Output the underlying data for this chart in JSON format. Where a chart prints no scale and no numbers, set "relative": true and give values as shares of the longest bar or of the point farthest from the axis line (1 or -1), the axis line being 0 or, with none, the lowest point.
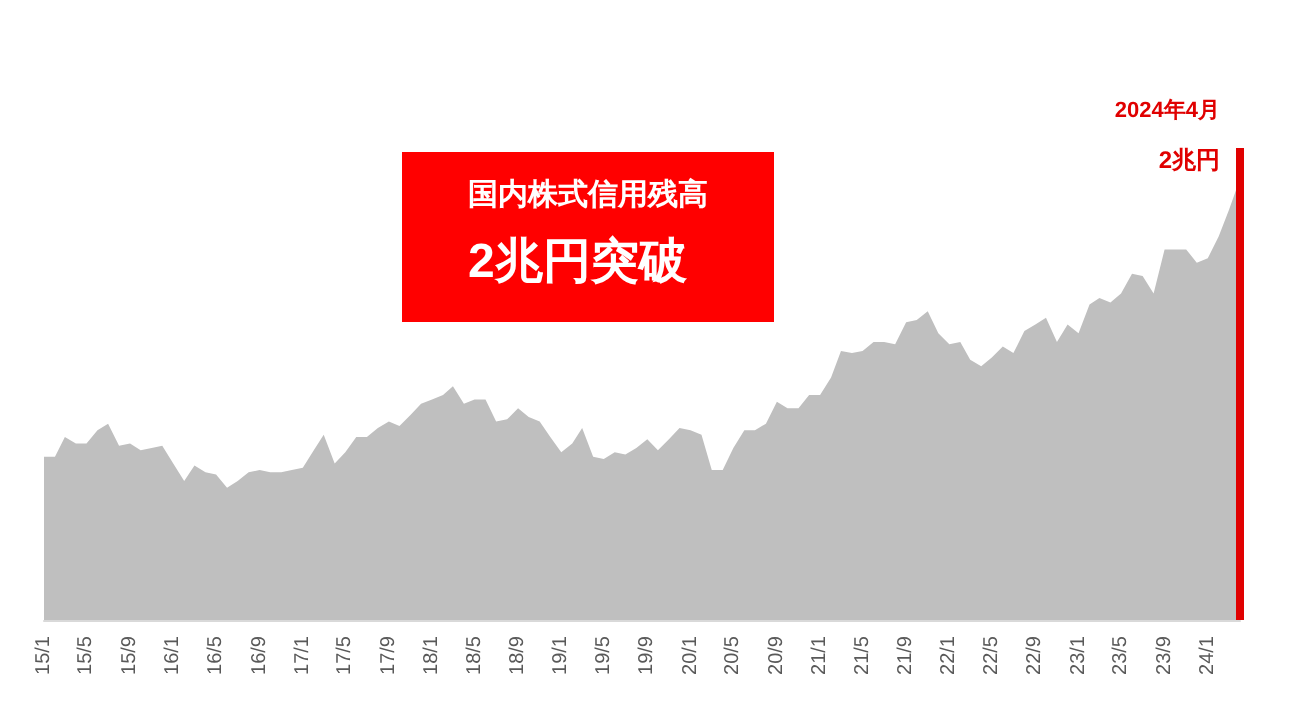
{
  "chart_data": {
    "type": "area",
    "title": "国内株式信用残高",
    "subtitle": "2兆円突破",
    "relative": true,
    "color": "#bfbfbf",
    "grid": false,
    "x": [
      "2015-01",
      "2015-02",
      "2015-03",
      "2015-04",
      "2015-05",
      "2015-06",
      "2015-07",
      "2015-08",
      "2015-09",
      "2015-10",
      "2015-11",
      "2015-12",
      "2016-01",
      "2016-02",
      "2016-03",
      "2016-04",
      "2016-05",
      "2016-06",
      "2016-07",
      "2016-08",
      "2016-09",
      "2016-10",
      "2016-11",
      "2016-12",
      "2017-01",
      "2017-02",
      "2017-03",
      "2017-04",
      "2017-05",
      "2017-06",
      "2017-07",
      "2017-08",
      "2017-09",
      "2017-10",
      "2017-11",
      "2017-12",
      "2018-01",
      "2018-02",
      "2018-03",
      "2018-04",
      "2018-05",
      "2018-06",
      "2018-07",
      "2018-08",
      "2018-09",
      "2018-10",
      "2018-11",
      "2018-12",
      "2019-01",
      "2019-02",
      "2019-03",
      "2019-04",
      "2019-05",
      "2019-06",
      "2019-07",
      "2019-08",
      "2019-09",
      "2019-10",
      "2019-11",
      "2019-12",
      "2020-01",
      "2020-02",
      "2020-03",
      "2020-04",
      "2020-05",
      "2020-06",
      "2020-07",
      "2020-08",
      "2020-09",
      "2020-10",
      "2020-11",
      "2020-12",
      "2021-01",
      "2021-02",
      "2021-03",
      "2021-04",
      "2021-05",
      "2021-06",
      "2021-07",
      "2021-08",
      "2021-09",
      "2021-10",
      "2021-11",
      "2021-12",
      "2022-01",
      "2022-02",
      "2022-03",
      "2022-04",
      "2022-05",
      "2022-06",
      "2022-07",
      "2022-08",
      "2022-09",
      "2022-10",
      "2022-11",
      "2022-12",
      "2023-01",
      "2023-02",
      "2023-03",
      "2023-04",
      "2023-05",
      "2023-06",
      "2023-07",
      "2023-08",
      "2023-09",
      "2023-10",
      "2023-11",
      "2023-12",
      "2024-01",
      "2024-02",
      "2024-03",
      "2024-04"
    ],
    "xlim": [
      "2015-01",
      "2024-04"
    ],
    "xticks": [
      {
        "value": "2015-01",
        "label": "15/1"
      },
      {
        "value": "2015-05",
        "label": "15/5"
      },
      {
        "value": "2015-09",
        "label": "15/9"
      },
      {
        "value": "2016-01",
        "label": "16/1"
      },
      {
        "value": "2016-05",
        "label": "16/5"
      },
      {
        "value": "2016-09",
        "label": "16/9"
      },
      {
        "value": "2017-01",
        "label": "17/1"
      },
      {
        "value": "2017-05",
        "label": "17/5"
      },
      {
        "value": "2017-09",
        "label": "17/9"
      },
      {
        "value": "2018-01",
        "label": "18/1"
      },
      {
        "value": "2018-05",
        "label": "18/5"
      },
      {
        "value": "2018-09",
        "label": "18/9"
      },
      {
        "value": "2019-01",
        "label": "19/1"
      },
      {
        "value": "2019-05",
        "label": "19/5"
      },
      {
        "value": "2019-09",
        "label": "19/9"
      },
      {
        "value": "2020-01",
        "label": "20/1"
      },
      {
        "value": "2020-05",
        "label": "20/5"
      },
      {
        "value": "2020-09",
        "label": "20/9"
      },
      {
        "value": "2021-01",
        "label": "21/1"
      },
      {
        "value": "2021-05",
        "label": "21/5"
      },
      {
        "value": "2021-09",
        "label": "21/9"
      },
      {
        "value": "2022-01",
        "label": "22/1"
      },
      {
        "value": "2022-05",
        "label": "22/5"
      },
      {
        "value": "2022-09",
        "label": "22/9"
      },
      {
        "value": "2023-01",
        "label": "23/1"
      },
      {
        "value": "2023-05",
        "label": "23/5"
      },
      {
        "value": "2023-09",
        "label": "23/9"
      },
      {
        "value": "2024-01",
        "label": "24/1"
      }
    ],
    "values": [
      0.37,
      0.37,
      0.415,
      0.4,
      0.4,
      0.43,
      0.445,
      0.395,
      0.4,
      0.385,
      0.39,
      0.395,
      0.355,
      0.315,
      0.35,
      0.335,
      0.33,
      0.3,
      0.315,
      0.335,
      0.34,
      0.335,
      0.335,
      0.34,
      0.345,
      0.385,
      0.42,
      0.355,
      0.38,
      0.415,
      0.415,
      0.435,
      0.45,
      0.44,
      0.465,
      0.49,
      0.5,
      0.51,
      0.53,
      0.49,
      0.5,
      0.5,
      0.45,
      0.455,
      0.48,
      0.46,
      0.45,
      0.415,
      0.38,
      0.4,
      0.435,
      0.37,
      0.365,
      0.38,
      0.375,
      0.39,
      0.41,
      0.385,
      0.41,
      0.435,
      0.43,
      0.42,
      0.34,
      0.34,
      0.39,
      0.43,
      0.43,
      0.445,
      0.495,
      0.48,
      0.48,
      0.51,
      0.51,
      0.55,
      0.61,
      0.605,
      0.61,
      0.63,
      0.63,
      0.625,
      0.675,
      0.68,
      0.7,
      0.65,
      0.625,
      0.63,
      0.59,
      0.575,
      0.595,
      0.62,
      0.605,
      0.655,
      0.67,
      0.685,
      0.63,
      0.67,
      0.65,
      0.715,
      0.73,
      0.72,
      0.74,
      0.785,
      0.78,
      0.74,
      0.84,
      0.84,
      0.84,
      0.81,
      0.82,
      0.87,
      0.93,
      1
    ],
    "ref_lines": [
      {
        "axis": "x",
        "value": "2024-04",
        "label": "2024年4月",
        "color": "#e00000"
      }
    ],
    "annotations": [
      "2兆円"
    ]
  }
}
